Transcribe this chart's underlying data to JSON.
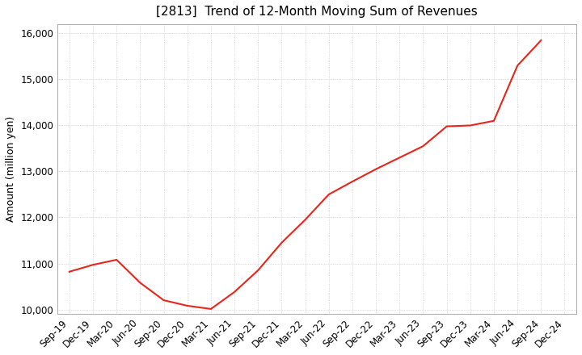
{
  "title": "[2813]  Trend of 12-Month Moving Sum of Revenues",
  "ylabel": "Amount (million yen)",
  "line_color": "#e8251a",
  "background_color": "#ffffff",
  "grid_color": "#aaaaaa",
  "x_labels": [
    "Sep-19",
    "Dec-19",
    "Mar-20",
    "Jun-20",
    "Sep-20",
    "Dec-20",
    "Mar-21",
    "Jun-21",
    "Sep-21",
    "Dec-21",
    "Mar-22",
    "Jun-22",
    "Sep-22",
    "Dec-22",
    "Mar-23",
    "Jun-23",
    "Sep-23",
    "Dec-23",
    "Mar-24",
    "Jun-24",
    "Sep-24",
    "Dec-24"
  ],
  "values": [
    10820,
    10970,
    11080,
    10580,
    10200,
    10080,
    10010,
    10380,
    10850,
    11450,
    11950,
    12500,
    12780,
    13050,
    13300,
    13550,
    13980,
    14000,
    14100,
    15300,
    15850,
    null
  ],
  "ylim": [
    9900,
    16200
  ],
  "yticks": [
    10000,
    11000,
    12000,
    13000,
    14000,
    15000,
    16000
  ],
  "title_fontsize": 11,
  "tick_fontsize": 8.5
}
